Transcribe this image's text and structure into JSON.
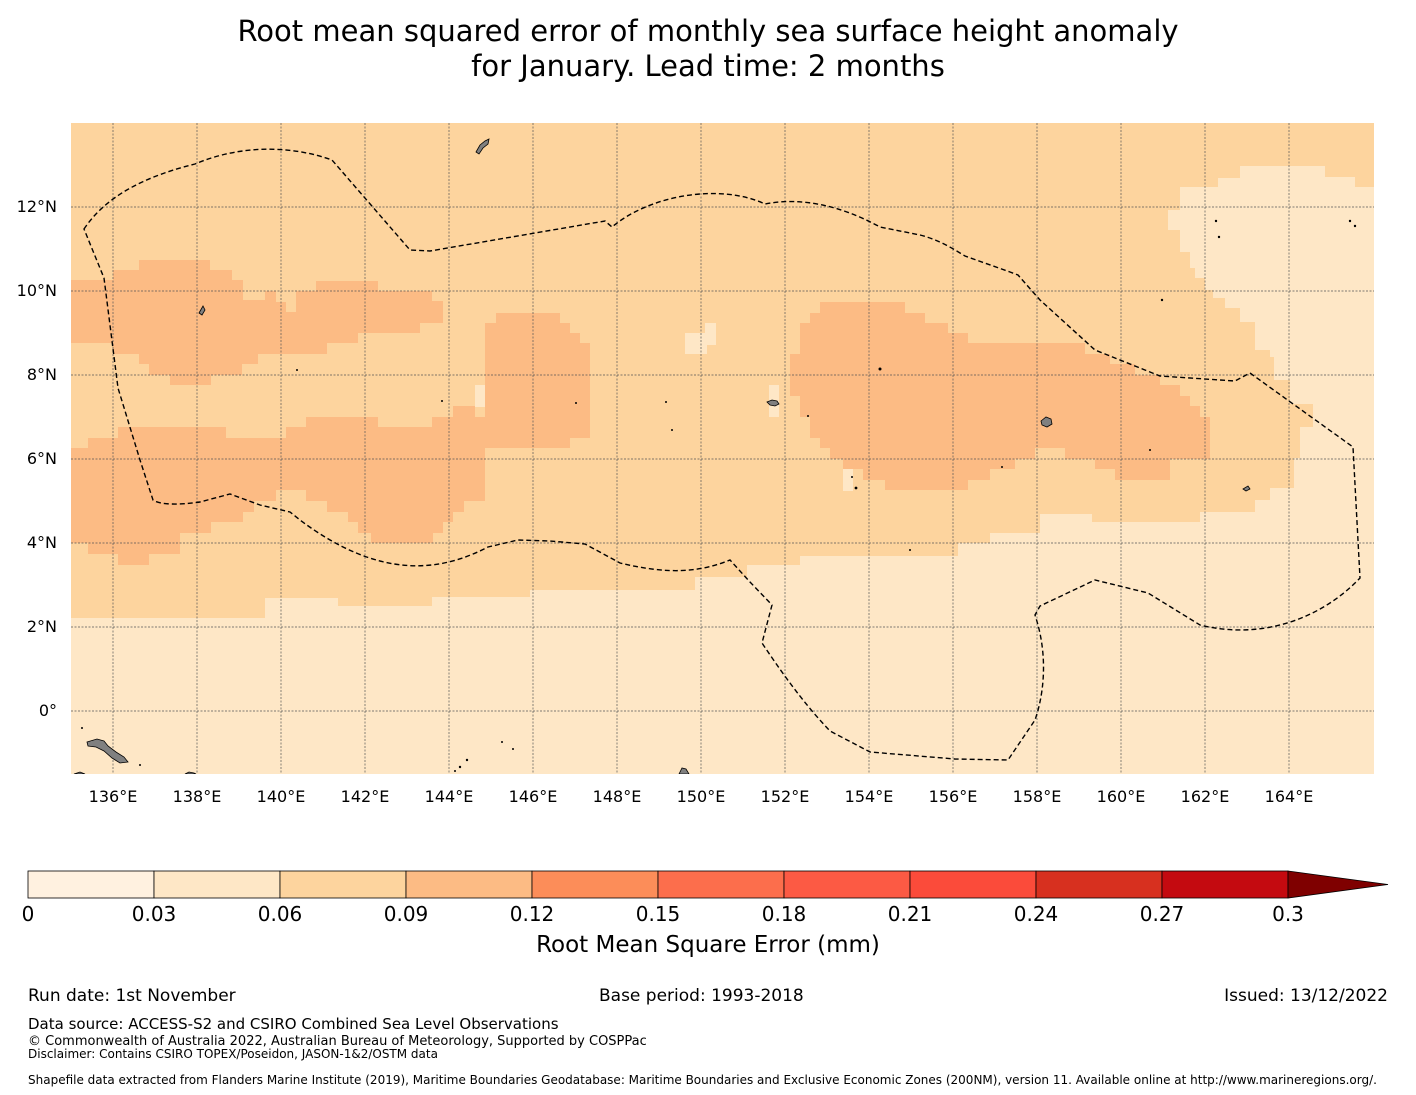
{
  "title": {
    "line1": "Root mean squared error of monthly sea surface height anomaly",
    "line2": "for January. Lead time: 2 months"
  },
  "map": {
    "lon_range": [
      135,
      166
    ],
    "lat_range": [
      -1.5,
      14
    ],
    "lon_ticks": [
      "136°E",
      "138°E",
      "140°E",
      "142°E",
      "144°E",
      "146°E",
      "148°E",
      "150°E",
      "152°E",
      "154°E",
      "156°E",
      "158°E",
      "160°E",
      "162°E",
      "164°E"
    ],
    "lat_ticks": [
      "12°N",
      "10°N",
      "8°N",
      "6°N",
      "4°N",
      "2°N",
      "0°"
    ],
    "colors": {
      "land": "#808080",
      "boundary": "#000000",
      "grid": "#555555"
    },
    "field_bins": {
      "level_0_03_0_06": "#fee7c6",
      "level_0_06_0_09": "#fdd49e",
      "level_0_09_0_12": "#fcbb84"
    }
  },
  "colorbar": {
    "label": "Root Mean Square Error (mm)",
    "ticks": [
      "0",
      "0.03",
      "0.06",
      "0.09",
      "0.12",
      "0.15",
      "0.18",
      "0.21",
      "0.24",
      "0.27",
      "0.3"
    ],
    "colors": [
      "#fff1e0",
      "#fee7c6",
      "#fdd49e",
      "#fcbb84",
      "#fc8d59",
      "#fc6e4c",
      "#fc5a44",
      "#fb4b3a",
      "#d7301f",
      "#c40a10",
      "#ad0000"
    ],
    "extend_color": "#7f0000"
  },
  "footer": {
    "run_date": "Run date: 1st November",
    "base_period": "Base period: 1993-2018",
    "issued": "Issued: 13/12/2022",
    "data_source": "Data source: ACCESS-S2 and CSIRO Combined Sea Level Observations",
    "copyright": "© Commonwealth of Australia 2022, Australian Bureau of Meteorology, Supported by COSPPac",
    "disclaimer": "Disclaimer: Contains CSIRO TOPEX/Poseidon, JASON-1&2/OSTM data",
    "shapefile": "Shapefile data extracted from Flanders Marine Institute (2019), Maritime Boundaries Geodatabase: Maritime Boundaries and Exclusive Economic Zones (200NM), version 11. Available online at http://www.marineregions.org/."
  }
}
